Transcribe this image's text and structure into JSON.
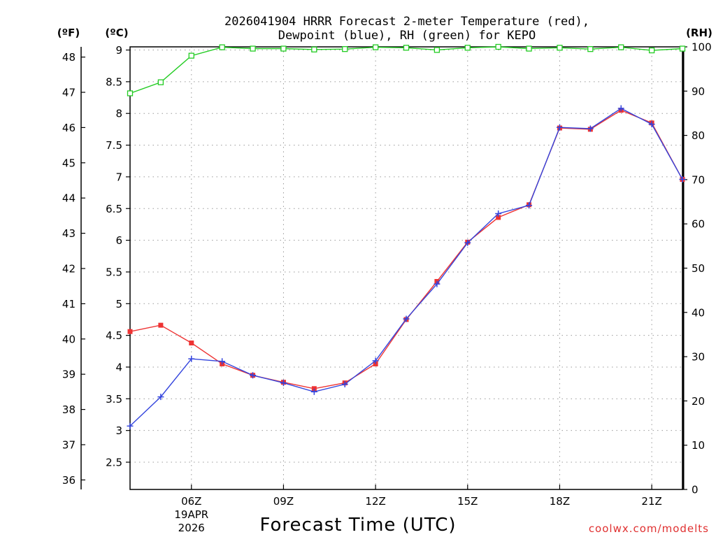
{
  "chart_data": {
    "type": "line",
    "title_line1": "2026041904 HRRR Forecast 2-meter Temperature (red),",
    "title_line2": "Dewpoint (blue), RH (green) for KEPO",
    "xlabel": "Forecast Time (UTC)",
    "credit": "coolwx.com/modelts",
    "left_outer_unit": "(ºF)",
    "left_inner_unit": "(ºC)",
    "right_unit": "(RH)",
    "x_range": [
      4,
      22
    ],
    "ylim_c": [
      2.07,
      9.05
    ],
    "ylim_f": [
      35.73,
      48.29
    ],
    "ylim_rh": [
      0,
      100
    ],
    "x_ticks": [
      {
        "x": 6,
        "label": "06Z",
        "sub1": "19APR",
        "sub2": "2026"
      },
      {
        "x": 9,
        "label": "09Z"
      },
      {
        "x": 12,
        "label": "12Z"
      },
      {
        "x": 15,
        "label": "15Z"
      },
      {
        "x": 18,
        "label": "18Z"
      },
      {
        "x": 21,
        "label": "21Z"
      }
    ],
    "c_ticks": [
      "2.5",
      "3",
      "3.5",
      "4",
      "4.5",
      "5",
      "5.5",
      "6",
      "6.5",
      "7",
      "7.5",
      "8",
      "8.5",
      "9"
    ],
    "f_ticks": [
      "36",
      "37",
      "38",
      "39",
      "40",
      "41",
      "42",
      "43",
      "44",
      "45",
      "46",
      "47",
      "48"
    ],
    "rh_ticks": [
      "0",
      "10",
      "20",
      "30",
      "40",
      "50",
      "60",
      "70",
      "80",
      "90",
      "100"
    ],
    "series": [
      {
        "name": "Temperature",
        "unit": "C",
        "color": "#ee3333",
        "marker": "square",
        "x": [
          4,
          5,
          6,
          7,
          8,
          9,
          10,
          11,
          12,
          13,
          14,
          15,
          16,
          17,
          18,
          19,
          20,
          21,
          22
        ],
        "values": [
          4.56,
          4.66,
          4.38,
          4.05,
          3.87,
          3.76,
          3.66,
          3.75,
          4.05,
          4.75,
          5.35,
          5.97,
          6.36,
          6.56,
          7.77,
          7.75,
          8.05,
          7.85,
          6.96
        ]
      },
      {
        "name": "Dewpoint",
        "unit": "C",
        "color": "#3344dd",
        "marker": "plus",
        "x": [
          4,
          5,
          6,
          7,
          8,
          9,
          10,
          11,
          12,
          13,
          14,
          15,
          16,
          17,
          18,
          19,
          20,
          21,
          22
        ],
        "values": [
          3.07,
          3.53,
          4.13,
          4.09,
          3.87,
          3.75,
          3.61,
          3.73,
          4.1,
          4.76,
          5.31,
          5.96,
          6.42,
          6.55,
          7.78,
          7.76,
          8.08,
          7.83,
          6.96
        ]
      },
      {
        "name": "RH",
        "unit": "%",
        "color": "#22cc22",
        "marker": "open-square",
        "x": [
          4,
          5,
          6,
          7,
          8,
          9,
          10,
          11,
          12,
          13,
          14,
          15,
          16,
          17,
          18,
          19,
          20,
          21,
          22
        ],
        "values": [
          89.5,
          92.0,
          98.0,
          99.9,
          99.6,
          99.6,
          99.4,
          99.5,
          99.9,
          99.8,
          99.3,
          99.8,
          100,
          99.6,
          99.8,
          99.5,
          99.9,
          99.2,
          99.6
        ]
      }
    ]
  }
}
